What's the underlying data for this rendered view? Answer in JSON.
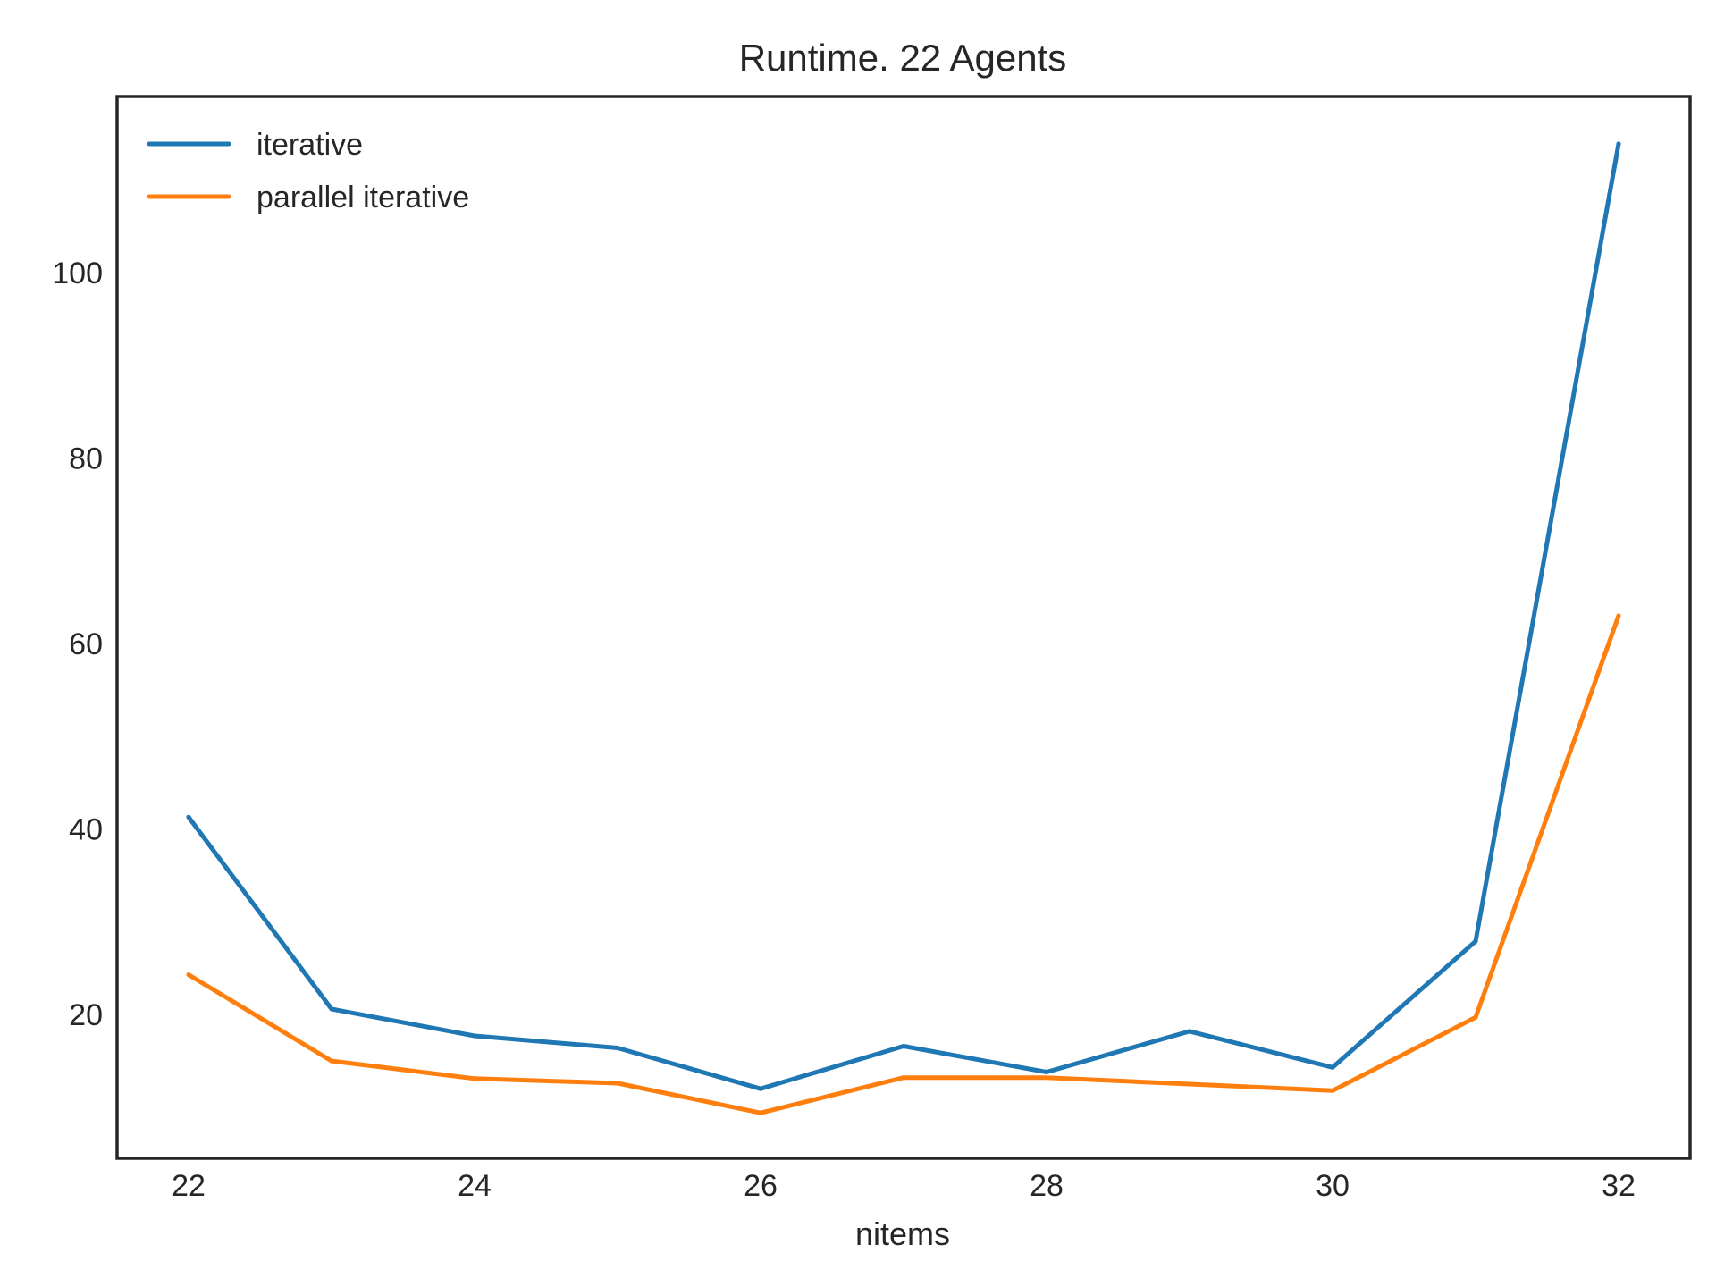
{
  "chart_data": {
    "type": "line",
    "title": "Runtime. 22 Agents",
    "xlabel": "nitems",
    "ylabel": "",
    "x": [
      22,
      23,
      24,
      25,
      26,
      27,
      28,
      29,
      30,
      31,
      32
    ],
    "xlim": [
      21.5,
      32.5
    ],
    "ylim": [
      4.5,
      119
    ],
    "xticks": [
      22,
      24,
      26,
      28,
      30,
      32
    ],
    "yticks": [
      20,
      40,
      60,
      80,
      100
    ],
    "grid": false,
    "legend": "top-left",
    "series": [
      {
        "name": "iterative",
        "color": "#1f77b4",
        "values": [
          41.3,
          20.6,
          17.7,
          16.4,
          12.0,
          16.6,
          13.8,
          18.2,
          14.3,
          27.9,
          113.9
        ]
      },
      {
        "name": "parallel iterative",
        "color": "#ff7f0e",
        "values": [
          24.3,
          15.0,
          13.1,
          12.6,
          9.4,
          13.2,
          13.2,
          12.5,
          11.8,
          19.7,
          63.0
        ]
      }
    ]
  }
}
